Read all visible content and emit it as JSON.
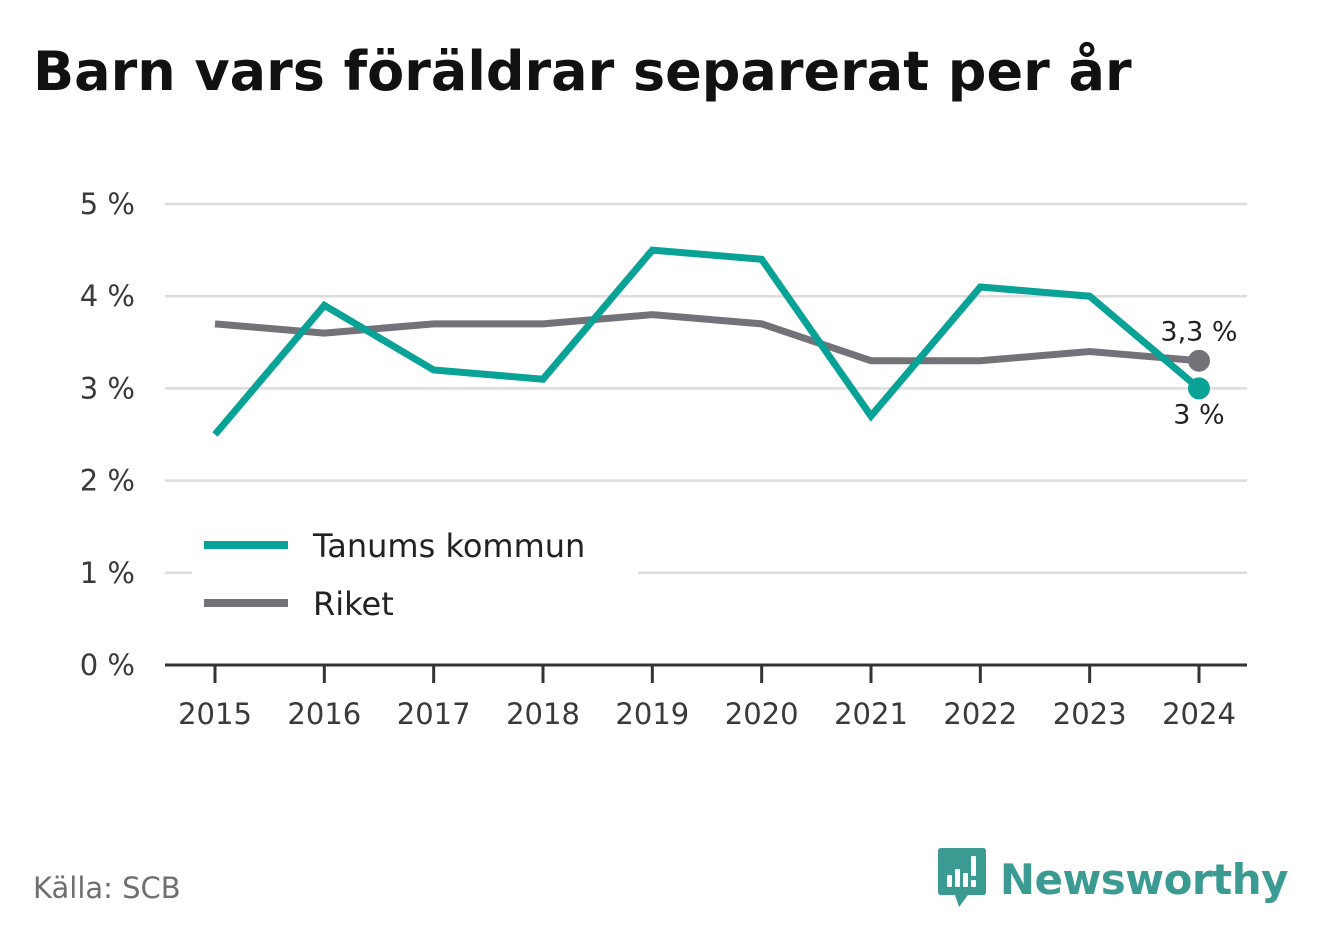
{
  "title": "Barn vars föräldrar separerat per år",
  "source": "Källa: SCB",
  "brand": {
    "name": "Newsworthy",
    "logo_icon": "newsworthy-logo-icon",
    "color": "#3b9b92"
  },
  "chart_data": {
    "type": "line",
    "title": "Barn vars föräldrar separerat per år",
    "xlabel": "",
    "ylabel": "",
    "x": [
      "2015",
      "2016",
      "2017",
      "2018",
      "2019",
      "2020",
      "2021",
      "2022",
      "2023",
      "2024"
    ],
    "yticks": [
      "0 %",
      "1 %",
      "2 %",
      "3 %",
      "4 %",
      "5 %"
    ],
    "ylim": [
      0,
      5
    ],
    "grid": true,
    "legend_position": "bottom-left",
    "series": [
      {
        "name": "Tanums kommun",
        "color": "#08a296",
        "values": [
          2.5,
          3.9,
          3.2,
          3.1,
          4.5,
          4.4,
          2.7,
          4.1,
          4.0,
          3.0
        ],
        "end_label": "3 %"
      },
      {
        "name": "Riket",
        "color": "#737279",
        "values": [
          3.7,
          3.6,
          3.7,
          3.7,
          3.8,
          3.7,
          3.3,
          3.3,
          3.4,
          3.3
        ],
        "end_label": "3,3 %"
      }
    ]
  }
}
